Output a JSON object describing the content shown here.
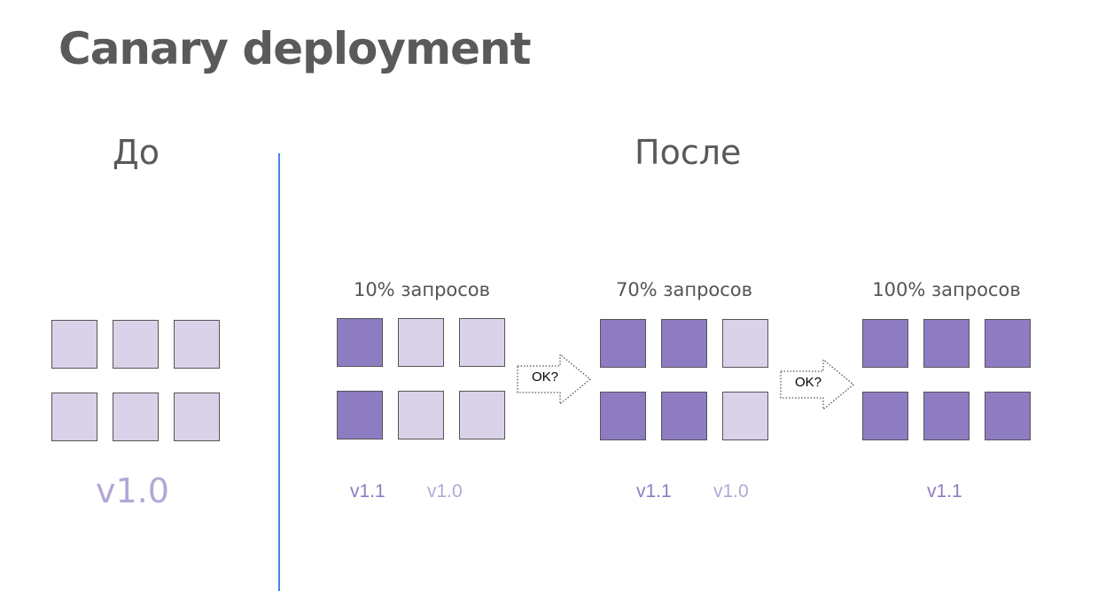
{
  "title": "Canary deployment",
  "before": {
    "heading": "До",
    "version_label": "v1.0",
    "cells": [
      "old",
      "old",
      "old",
      "old",
      "old",
      "old"
    ]
  },
  "after": {
    "heading": "После",
    "stages": [
      {
        "label": "10% запросов",
        "cells": [
          "new",
          "old",
          "old",
          "new",
          "old",
          "old"
        ],
        "versions": [
          {
            "text": "v1.1",
            "kind": "new"
          },
          {
            "text": "v1.0",
            "kind": "old"
          }
        ]
      },
      {
        "label": "70% запросов",
        "cells": [
          "new",
          "new",
          "old",
          "new",
          "new",
          "old"
        ],
        "versions": [
          {
            "text": "v1.1",
            "kind": "new"
          },
          {
            "text": "v1.0",
            "kind": "old"
          }
        ]
      },
      {
        "label": "100% запросов",
        "cells": [
          "new",
          "new",
          "new",
          "new",
          "new",
          "new"
        ],
        "versions": [
          {
            "text": "v1.1",
            "kind": "new"
          }
        ]
      }
    ],
    "arrows": [
      {
        "label": "OK?"
      },
      {
        "label": "OK?"
      }
    ]
  },
  "colors": {
    "old_version": "#d9d2e9",
    "new_version": "#8e7cc3",
    "old_text": "#b4a7d6",
    "divider": "#4a86e8"
  }
}
